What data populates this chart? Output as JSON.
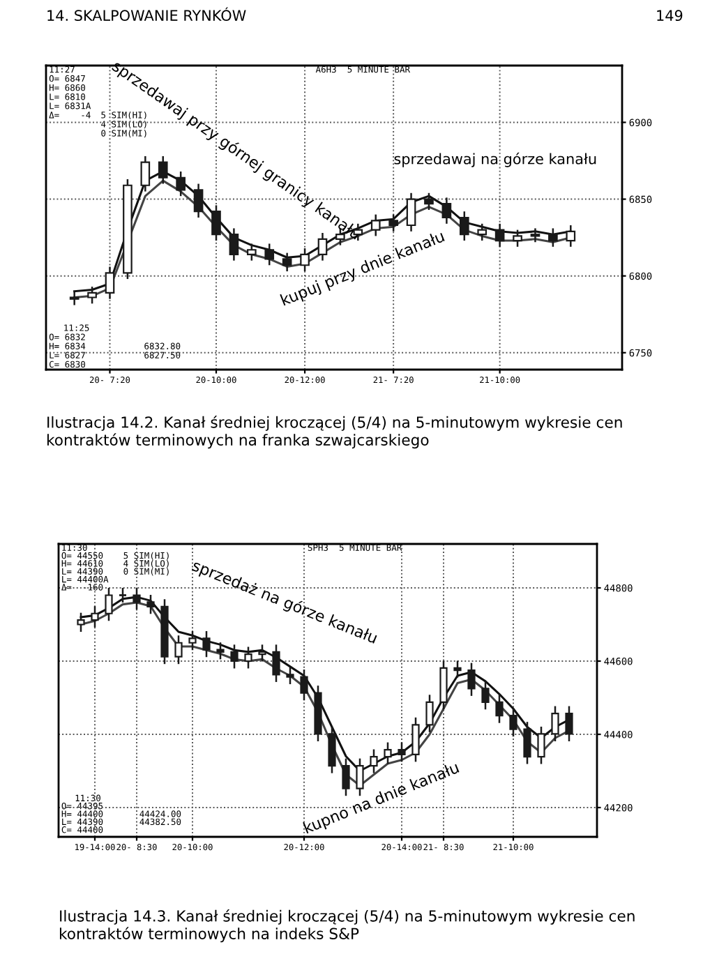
{
  "chart_data": [
    {
      "type": "candlestick",
      "title": "Ilustracja 14.2. Kanał średniej kroczącej (5/4) na 5-minutowym wykresie cen kontraktów terminowych na franka szwajcarskiego",
      "categories": [
        null,
        null,
        "20- 7:20",
        null,
        null,
        null,
        null,
        null,
        "20-10:00",
        null,
        null,
        null,
        null,
        "20-12:00",
        null,
        null,
        null,
        null,
        "21- 7:20",
        null,
        null,
        null,
        null,
        null,
        "21-10:00",
        null,
        null,
        null,
        null
      ],
      "ohlc": [
        [
          6785,
          6790,
          6781,
          6786
        ],
        [
          6786,
          6793,
          6782,
          6789
        ],
        [
          6789,
          6806,
          6785,
          6802
        ],
        [
          6802,
          6863,
          6798,
          6859
        ],
        [
          6859,
          6878,
          6855,
          6874
        ],
        [
          6874,
          6878,
          6860,
          6864
        ],
        [
          6864,
          6868,
          6852,
          6856
        ],
        [
          6856,
          6860,
          6838,
          6842
        ],
        [
          6842,
          6846,
          6823,
          6827
        ],
        [
          6827,
          6831,
          6810,
          6814
        ],
        [
          6814,
          6821,
          6810,
          6817
        ],
        [
          6817,
          6821,
          6807,
          6811
        ],
        [
          6811,
          6815,
          6803,
          6807
        ],
        [
          6807,
          6818,
          6803,
          6814
        ],
        [
          6814,
          6828,
          6810,
          6824
        ],
        [
          6824,
          6831,
          6820,
          6827
        ],
        [
          6827,
          6834,
          6823,
          6830
        ],
        [
          6830,
          6840,
          6826,
          6836
        ],
        [
          6836,
          6840,
          6829,
          6833
        ],
        [
          6833,
          6854,
          6829,
          6850
        ],
        [
          6850,
          6854,
          6843,
          6847
        ],
        [
          6847,
          6851,
          6834,
          6838
        ],
        [
          6838,
          6842,
          6823,
          6827
        ],
        [
          6827,
          6834,
          6823,
          6830
        ],
        [
          6830,
          6834,
          6819,
          6823
        ],
        [
          6823,
          6830,
          6819,
          6826
        ],
        [
          6826,
          6831,
          6822,
          6827
        ],
        [
          6827,
          6831,
          6819,
          6823
        ],
        [
          6823,
          6833,
          6819,
          6829
        ]
      ],
      "color": "#1a1a1a",
      "series": [
        {
          "type": "line",
          "color": "#111111",
          "values": [
            6790,
            6791,
            6795,
            6830,
            6862,
            6868,
            6862,
            6852,
            6838,
            6825,
            6820,
            6817,
            6812,
            6813,
            6820,
            6827,
            6831,
            6836,
            6837,
            6848,
            6852,
            6845,
            6835,
            6832,
            6829,
            6828,
            6829,
            6827,
            6829
          ]
        },
        {
          "type": "line",
          "color": "#444444",
          "values": [
            6786,
            6787,
            6792,
            6822,
            6852,
            6862,
            6855,
            6845,
            6832,
            6820,
            6814,
            6811,
            6806,
            6808,
            6815,
            6822,
            6826,
            6831,
            6832,
            6840,
            6845,
            6840,
            6830,
            6826,
            6823,
            6823,
            6824,
            6822,
            6825
          ]
        }
      ],
      "ylim": [
        6739,
        6937
      ],
      "yticks": [
        6750,
        6800,
        6850,
        6900
      ],
      "grid": true,
      "annotations": [
        "14. SKALPOWANIE RYNKÓW",
        "149",
        "11:27",
        "O= 6847",
        "H= 6860",
        "L= 6810",
        "L= 6831A",
        "Δ=    -4",
        "5 SIM(HI)",
        "4 SIM(LO)",
        "0 SIM(MI)",
        "A6H3  5 MINUTE BAR",
        "11:25",
        "O= 6832",
        "H= 6834",
        "L= 6827",
        "C= 6830",
        "6832.80",
        "6827.50",
        "sprzedawaj przy górnej granicy kanału",
        "sprzedawaj na górze kanału",
        "kupuj przy dnie kanału"
      ]
    },
    {
      "type": "candlestick",
      "title": "Ilustracja 14.3. Kanał średniej kroczącej (5/4) na 5-minutowym wykresie cen kontraktów terminowych na indeks S&P",
      "categories": [
        null,
        "19-14:00",
        null,
        null,
        "20- 8:30",
        null,
        null,
        null,
        "20-10:00",
        null,
        null,
        null,
        null,
        null,
        null,
        null,
        "20-12:00",
        null,
        null,
        null,
        null,
        null,
        null,
        "20-14:00",
        null,
        null,
        "21- 8:30",
        null,
        null,
        null,
        null,
        "21-10:00",
        null,
        null,
        null,
        null
      ],
      "ohlc": [
        [
          44700,
          44732,
          44680,
          44712
        ],
        [
          44712,
          44750,
          44692,
          44730
        ],
        [
          44730,
          44800,
          44710,
          44780
        ],
        [
          44780,
          44800,
          44760,
          44780
        ],
        [
          44780,
          44800,
          44741,
          44761
        ],
        [
          44761,
          44781,
          44729,
          44749
        ],
        [
          44749,
          44769,
          44592,
          44612
        ],
        [
          44612,
          44670,
          44592,
          44650
        ],
        [
          44650,
          44682,
          44630,
          44662
        ],
        [
          44662,
          44682,
          44611,
          44631
        ],
        [
          44631,
          44651,
          44605,
          44625
        ],
        [
          44625,
          44645,
          44580,
          44600
        ],
        [
          44600,
          44639,
          44580,
          44619
        ],
        [
          44619,
          44645,
          44599,
          44625
        ],
        [
          44625,
          44645,
          44543,
          44563
        ],
        [
          44563,
          44583,
          44537,
          44557
        ],
        [
          44557,
          44577,
          44493,
          44513
        ],
        [
          44513,
          44533,
          44381,
          44401
        ],
        [
          44401,
          44421,
          44294,
          44314
        ],
        [
          44314,
          44334,
          44232,
          44252
        ],
        [
          44252,
          44334,
          44232,
          44314
        ],
        [
          44314,
          44359,
          44294,
          44339
        ],
        [
          44339,
          44378,
          44319,
          44358
        ],
        [
          44358,
          44378,
          44325,
          44345
        ],
        [
          44345,
          44446,
          44325,
          44426
        ],
        [
          44426,
          44508,
          44406,
          44488
        ],
        [
          44488,
          44601,
          44468,
          44581
        ],
        [
          44581,
          44601,
          44555,
          44575
        ],
        [
          44575,
          44595,
          44505,
          44525
        ],
        [
          44525,
          44545,
          44468,
          44488
        ],
        [
          44488,
          44508,
          44431,
          44451
        ],
        [
          44451,
          44471,
          44394,
          44414
        ],
        [
          44414,
          44434,
          44319,
          44339
        ],
        [
          44339,
          44421,
          44319,
          44401
        ],
        [
          44401,
          44477,
          44381,
          44457
        ],
        [
          44457,
          44477,
          44381,
          44401
        ]
      ],
      "color": "#1a1a1a",
      "series": [
        {
          "type": "line",
          "color": "#111111",
          "values": [
            44720,
            44725,
            44745,
            44770,
            44775,
            44765,
            44720,
            44680,
            44670,
            44655,
            44645,
            44630,
            44625,
            44630,
            44610,
            44585,
            44560,
            44500,
            44420,
            44340,
            44300,
            44320,
            44340,
            44350,
            44380,
            44430,
            44500,
            44560,
            44570,
            44545,
            44510,
            44470,
            44420,
            44390,
            44420,
            44440
          ]
        },
        {
          "type": "line",
          "color": "#444444",
          "values": [
            44700,
            44710,
            44730,
            44755,
            44760,
            44750,
            44690,
            44640,
            44640,
            44630,
            44620,
            44605,
            44600,
            44605,
            44580,
            44560,
            44530,
            44460,
            44370,
            44290,
            44260,
            44290,
            44320,
            44330,
            44350,
            44400,
            44470,
            44540,
            44550,
            44520,
            44480,
            44440,
            44380,
            44350,
            44390,
            44410
          ]
        }
      ],
      "ylim": [
        44120,
        44920
      ],
      "yticks": [
        44200,
        44400,
        44600,
        44800
      ],
      "grid": true,
      "annotations": [
        "11:30",
        "O= 44550",
        "H= 44610",
        "L= 44390",
        "L= 44400A",
        "Δ=  -160",
        "5 SIM(HI)",
        "4 SIM(LO)",
        "0 SIM(MI)",
        "SPH3  5 MINUTE BAR",
        "11:30",
        "O= 44395",
        "H= 44400",
        "L= 44390",
        "C= 44400",
        "44424.00",
        "44382.50",
        "sprzedaż na górze kanału",
        "kupno na dnie kanału"
      ]
    }
  ]
}
